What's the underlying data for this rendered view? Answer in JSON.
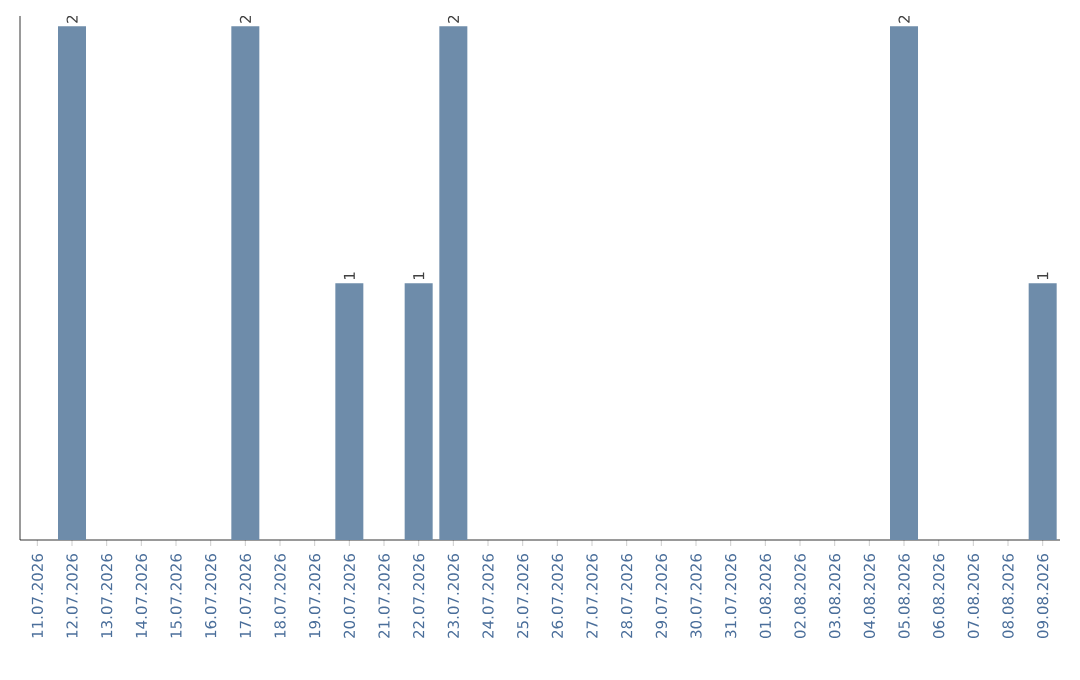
{
  "chart_data": {
    "type": "bar",
    "categories": [
      "11.07.2026",
      "12.07.2026",
      "13.07.2026",
      "14.07.2026",
      "15.07.2026",
      "16.07.2026",
      "17.07.2026",
      "18.07.2026",
      "19.07.2026",
      "20.07.2026",
      "21.07.2026",
      "22.07.2026",
      "23.07.2026",
      "24.07.2026",
      "25.07.2026",
      "26.07.2026",
      "27.07.2026",
      "28.07.2026",
      "29.07.2026",
      "30.07.2026",
      "31.07.2026",
      "01.08.2026",
      "02.08.2026",
      "03.08.2026",
      "04.08.2026",
      "05.08.2026",
      "06.08.2026",
      "07.08.2026",
      "08.08.2026",
      "09.08.2026"
    ],
    "values": [
      0,
      2,
      0,
      0,
      0,
      0,
      2,
      0,
      0,
      1,
      0,
      1,
      2,
      0,
      0,
      0,
      0,
      0,
      0,
      0,
      0,
      0,
      0,
      0,
      0,
      2,
      0,
      0,
      0,
      1
    ],
    "value_labels": [
      null,
      "2",
      null,
      null,
      null,
      null,
      "2",
      null,
      null,
      "1",
      null,
      "1",
      "2",
      null,
      null,
      null,
      null,
      null,
      null,
      null,
      null,
      null,
      null,
      null,
      null,
      "2",
      null,
      null,
      null,
      "1"
    ],
    "color": "#6e8caa"
  }
}
